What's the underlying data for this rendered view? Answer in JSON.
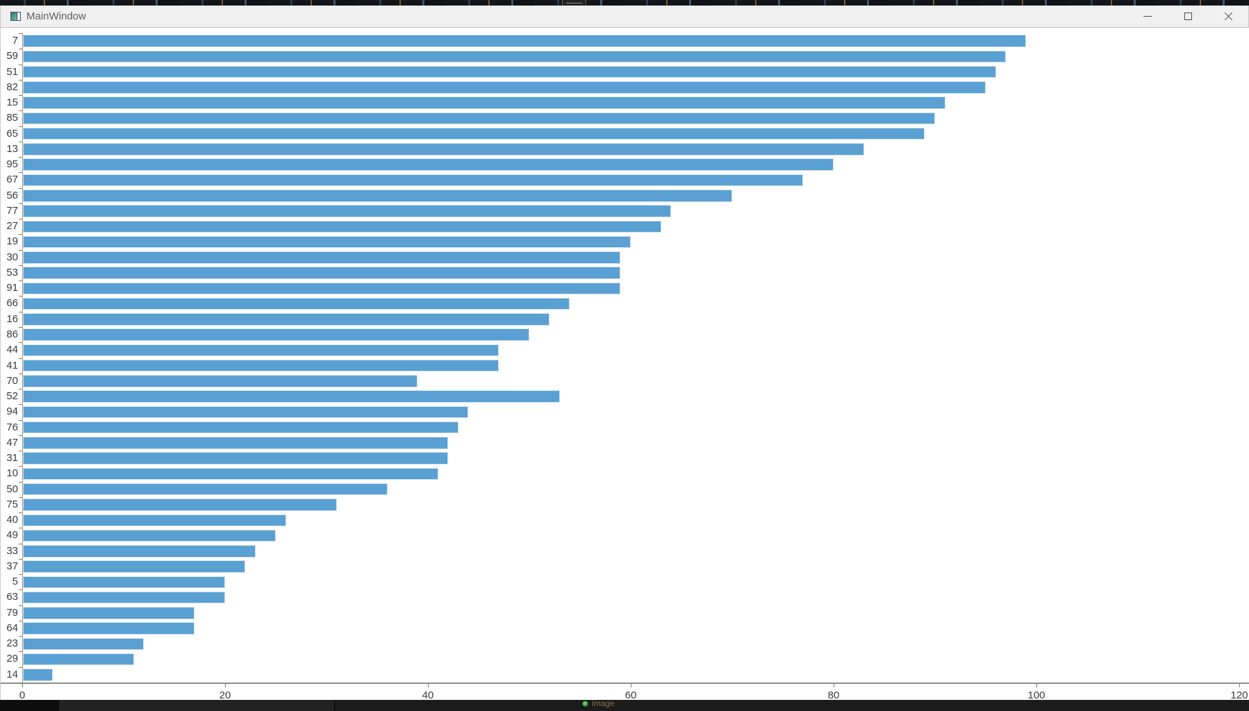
{
  "window": {
    "title": "MainWindow"
  },
  "chart_data": {
    "type": "bar",
    "orientation": "horizontal",
    "title": "",
    "xlabel": "",
    "ylabel": "",
    "categories": [
      "7",
      "59",
      "51",
      "82",
      "15",
      "85",
      "65",
      "13",
      "95",
      "67",
      "56",
      "77",
      "27",
      "19",
      "30",
      "53",
      "91",
      "66",
      "16",
      "86",
      "44",
      "41",
      "70",
      "52",
      "94",
      "76",
      "47",
      "31",
      "10",
      "50",
      "75",
      "40",
      "49",
      "33",
      "37",
      "5",
      "63",
      "79",
      "64",
      "23",
      "29",
      "14"
    ],
    "values": [
      99,
      97,
      96,
      95,
      91,
      90,
      89,
      83,
      80,
      77,
      70,
      64,
      63,
      60,
      59,
      59,
      59,
      54,
      52,
      50,
      47,
      47,
      39,
      53,
      44,
      43,
      42,
      42,
      41,
      36,
      31,
      26,
      25,
      23,
      22,
      20,
      20,
      17,
      17,
      12,
      11,
      3
    ],
    "x_ticks": [
      0,
      20,
      40,
      60,
      80,
      100,
      120
    ],
    "xlim": [
      0,
      120
    ],
    "grid": false,
    "legend": false,
    "bar_color": "#5AA0D2",
    "bar_border_color": "#CFE3F3",
    "axis_color": "#8C8C8C",
    "spine_color": "#9A9A9A",
    "tick_color": "#777777",
    "tick_label_color": "#3A3A3A"
  },
  "background_bar": {
    "label": "image"
  }
}
